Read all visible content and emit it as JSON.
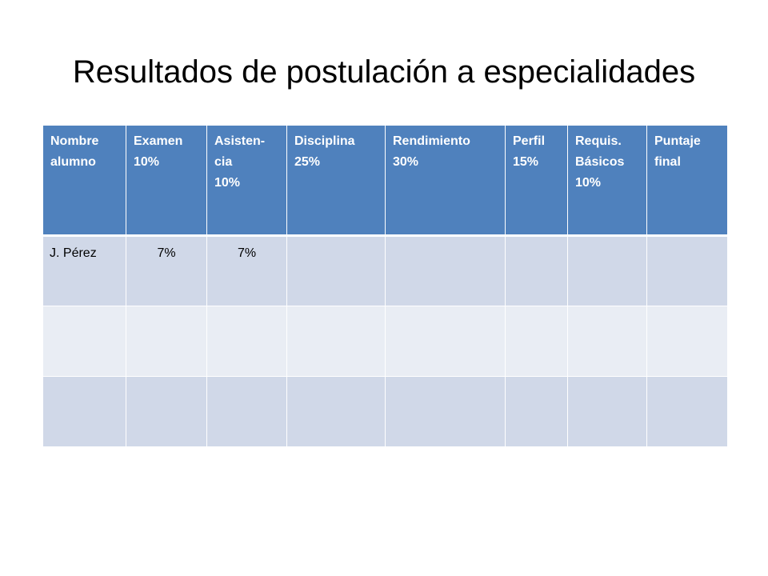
{
  "slide": {
    "title": "Resultados de postulación a especialidades"
  },
  "table": {
    "headers": [
      [
        "Nombre",
        "alumno"
      ],
      [
        "Examen",
        "10%"
      ],
      [
        "Asisten-",
        "cia",
        "10%"
      ],
      [
        "Disciplina",
        "25%"
      ],
      [
        "Rendimiento",
        "30%"
      ],
      [
        "Perfil",
        "15%"
      ],
      [
        "Requis.",
        "Básicos",
        "10%"
      ],
      [
        "Puntaje",
        "final"
      ]
    ],
    "rows": [
      [
        "J. Pérez",
        "7%",
        "7%",
        "",
        "",
        "",
        "",
        ""
      ],
      [
        "",
        "",
        "",
        "",
        "",
        "",
        "",
        ""
      ],
      [
        "",
        "",
        "",
        "",
        "",
        "",
        "",
        ""
      ]
    ]
  },
  "colors": {
    "header_bg": "#4f81bd",
    "row_odd_bg": "#d0d8e8",
    "row_even_bg": "#e9edf4"
  }
}
